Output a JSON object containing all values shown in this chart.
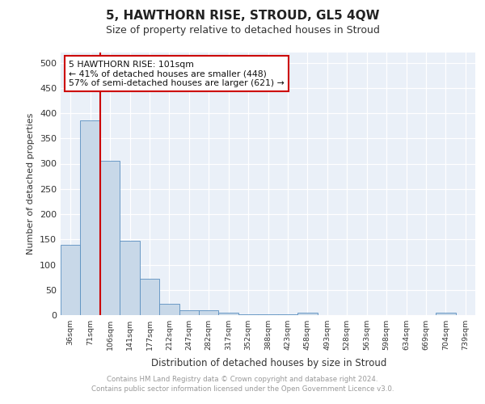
{
  "title": "5, HAWTHORN RISE, STROUD, GL5 4QW",
  "subtitle": "Size of property relative to detached houses in Stroud",
  "xlabel": "Distribution of detached houses by size in Stroud",
  "ylabel": "Number of detached properties",
  "bin_labels": [
    "36sqm",
    "71sqm",
    "106sqm",
    "141sqm",
    "177sqm",
    "212sqm",
    "247sqm",
    "282sqm",
    "317sqm",
    "352sqm",
    "388sqm",
    "423sqm",
    "458sqm",
    "493sqm",
    "528sqm",
    "563sqm",
    "598sqm",
    "634sqm",
    "669sqm",
    "704sqm",
    "739sqm"
  ],
  "bar_heights": [
    140,
    385,
    305,
    148,
    72,
    23,
    10,
    9,
    5,
    1,
    1,
    1,
    5,
    0,
    0,
    0,
    0,
    0,
    0,
    5,
    0
  ],
  "bar_color": "#c8d8e8",
  "bar_edge_color": "#5a8fc0",
  "property_label": "5 HAWTHORN RISE: 101sqm",
  "annotation_line1": "← 41% of detached houses are smaller (448)",
  "annotation_line2": "57% of semi-detached houses are larger (621) →",
  "annotation_box_color": "#ffffff",
  "annotation_box_edge": "#cc0000",
  "ylim": [
    0,
    520
  ],
  "yticks": [
    0,
    50,
    100,
    150,
    200,
    250,
    300,
    350,
    400,
    450,
    500
  ],
  "footer_line1": "Contains HM Land Registry data © Crown copyright and database right 2024.",
  "footer_line2": "Contains public sector information licensed under the Open Government Licence v3.0.",
  "plot_bg_color": "#eaf0f8",
  "grid_color": "#ffffff"
}
